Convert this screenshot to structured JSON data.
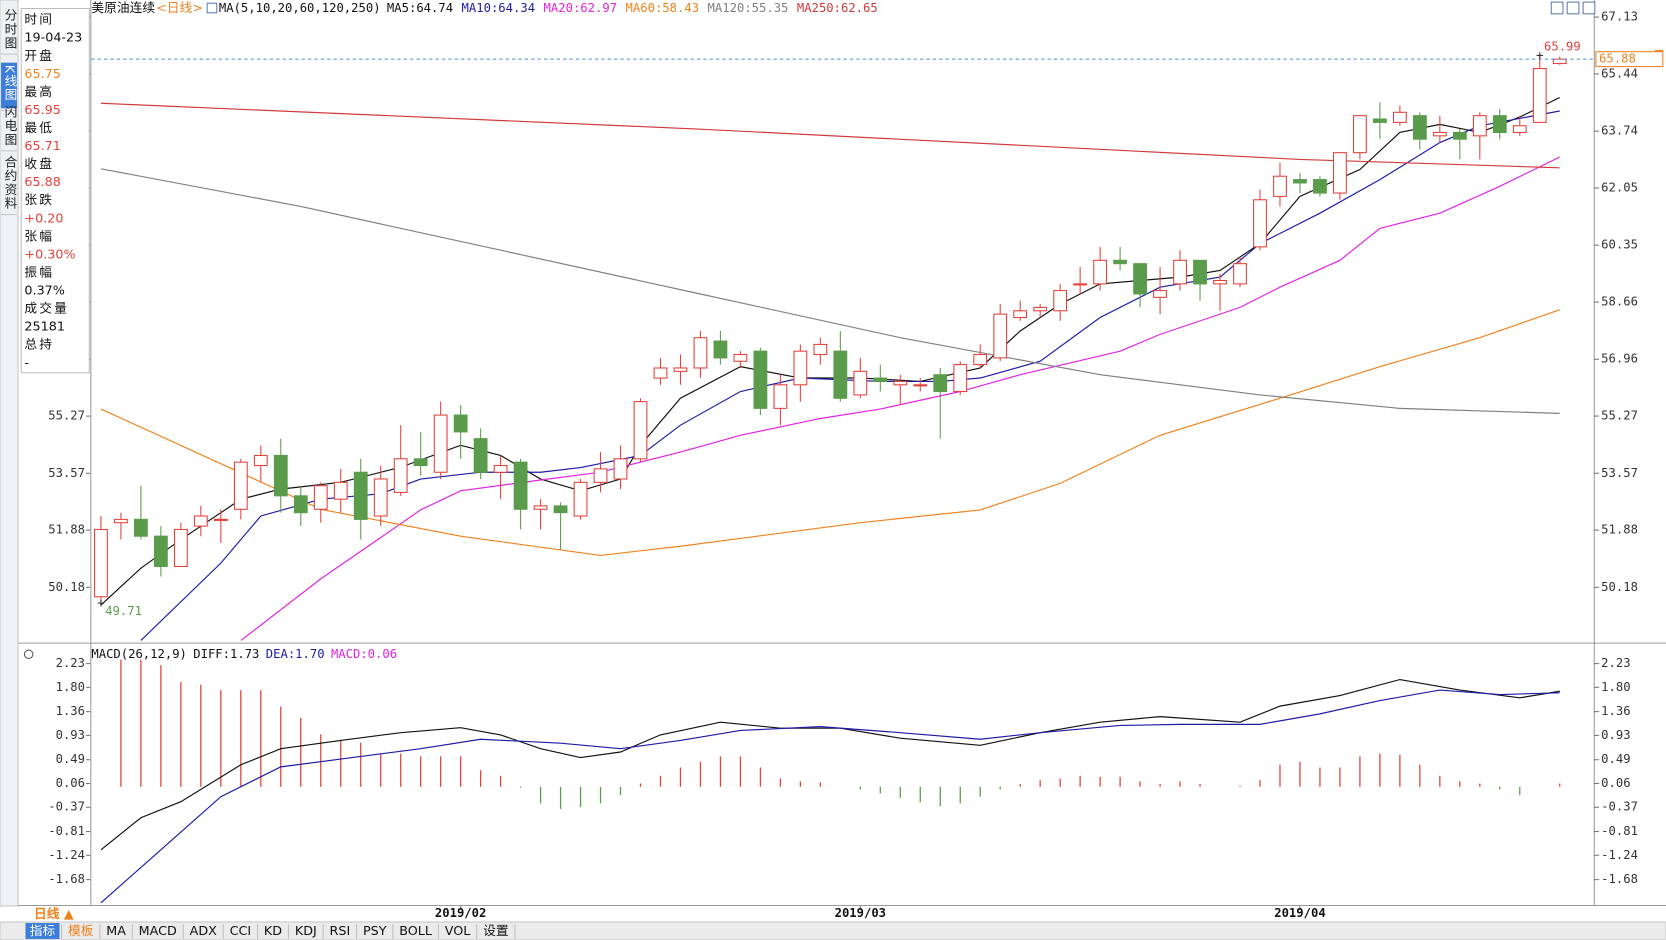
{
  "sidebar": [
    "分时图",
    "K线图",
    "闪电图",
    "合约资料"
  ],
  "info_panel": [
    {
      "label": "时间",
      "value": "19-04-23"
    },
    {
      "label": "开盘",
      "value": "65.75"
    },
    {
      "label": "最高",
      "value": "65.95"
    },
    {
      "label": "最低",
      "value": "65.71"
    },
    {
      "label": "收盘",
      "value": "65.88"
    },
    {
      "label": "张跌",
      "value": "+0.20"
    },
    {
      "label": "张幅",
      "value": "+0.30%"
    },
    {
      "label": "振幅",
      "value": "0.37%"
    },
    {
      "label": "成交量",
      "value": "25181"
    },
    {
      "label": "总持",
      "value": "-"
    }
  ],
  "period_button": "日线 ▲",
  "toolbar": [
    "指标",
    "模板",
    "MA",
    "MACD",
    "ADX",
    "CCI",
    "KD",
    "KDJ",
    "RSI",
    "PSY",
    "BOLL",
    "VOL",
    "设置"
  ],
  "chart_data": [
    {
      "type": "candlestick",
      "title": "美原油连续",
      "period": "<日线>",
      "indicator": "MA(5,10,20,60,120,250)",
      "up_color": "#e3413a",
      "down_color": "#5b9c4c",
      "open": [
        49.9,
        52.1,
        52.2,
        51.7,
        50.8,
        52.0,
        52.2,
        52.5,
        53.8,
        54.1,
        52.9,
        52.5,
        52.8,
        53.6,
        52.3,
        53.0,
        54.0,
        53.6,
        55.3,
        54.6,
        53.6,
        53.9,
        52.5,
        52.6,
        52.3,
        53.3,
        53.4,
        54.0,
        56.4,
        56.6,
        56.7,
        57.5,
        56.9,
        57.2,
        55.5,
        56.2,
        57.1,
        57.2,
        55.9,
        56.4,
        56.2,
        56.2,
        56.5,
        56.0,
        56.8,
        57.0,
        58.2,
        58.4,
        58.4,
        59.2,
        59.2,
        59.9,
        59.8,
        58.8,
        59.2,
        59.9,
        59.2,
        59.2,
        60.3,
        61.8,
        62.3,
        62.3,
        61.9,
        63.1,
        64.1,
        64.0,
        64.2,
        63.6,
        63.7,
        63.6,
        64.2,
        63.7,
        64.0,
        65.75
      ],
      "high": [
        52.3,
        52.4,
        53.2,
        52.0,
        52.1,
        52.6,
        52.5,
        54.0,
        54.4,
        54.6,
        53.2,
        53.3,
        53.7,
        54.0,
        53.8,
        55.0,
        54.8,
        55.7,
        55.6,
        54.9,
        54.1,
        54.0,
        52.8,
        52.7,
        53.4,
        54.2,
        54.4,
        55.8,
        57.0,
        57.1,
        57.8,
        57.8,
        57.2,
        57.3,
        56.5,
        57.4,
        57.6,
        57.8,
        57.0,
        56.8,
        56.5,
        56.4,
        56.7,
        56.9,
        57.4,
        58.6,
        58.7,
        58.6,
        59.2,
        59.7,
        60.3,
        60.3,
        59.8,
        59.7,
        60.2,
        59.9,
        59.5,
        60.0,
        62.0,
        62.8,
        62.5,
        62.4,
        63.1,
        64.2,
        64.6,
        64.5,
        64.3,
        64.2,
        63.8,
        64.3,
        64.4,
        64.2,
        65.99,
        65.95
      ],
      "low": [
        49.71,
        51.6,
        51.6,
        50.5,
        50.8,
        51.7,
        51.5,
        52.2,
        53.3,
        52.4,
        52.0,
        52.1,
        52.4,
        51.6,
        52.0,
        52.9,
        53.5,
        53.4,
        54.0,
        53.4,
        52.8,
        51.9,
        51.9,
        51.3,
        52.2,
        53.0,
        53.1,
        53.9,
        56.2,
        56.2,
        56.4,
        56.8,
        56.7,
        55.3,
        55.0,
        55.7,
        56.8,
        55.7,
        55.8,
        56.0,
        55.6,
        56.0,
        54.6,
        55.9,
        56.7,
        56.9,
        58.1,
        58.2,
        58.1,
        58.9,
        59.0,
        59.6,
        58.5,
        58.3,
        59.0,
        58.7,
        58.4,
        59.1,
        60.2,
        61.5,
        61.9,
        61.8,
        61.7,
        62.9,
        63.5,
        63.9,
        63.2,
        63.4,
        62.9,
        62.9,
        63.5,
        63.6,
        64.0,
        65.71
      ],
      "close": [
        51.9,
        52.2,
        51.7,
        50.8,
        51.9,
        52.3,
        52.2,
        53.9,
        54.1,
        52.9,
        52.4,
        53.2,
        53.3,
        52.2,
        53.4,
        54.0,
        53.8,
        55.3,
        54.8,
        53.6,
        53.8,
        52.5,
        52.6,
        52.4,
        53.3,
        53.7,
        54.0,
        55.7,
        56.7,
        56.7,
        57.6,
        57.0,
        57.1,
        55.5,
        56.2,
        57.2,
        57.4,
        55.8,
        56.6,
        56.3,
        56.3,
        56.2,
        56.0,
        56.8,
        57.1,
        58.3,
        58.4,
        58.5,
        59.0,
        59.2,
        59.9,
        59.8,
        58.9,
        59.0,
        59.9,
        59.2,
        59.3,
        59.8,
        61.7,
        62.4,
        62.2,
        61.9,
        63.1,
        64.2,
        64.0,
        64.3,
        63.5,
        63.7,
        63.5,
        64.2,
        63.7,
        63.9,
        65.6,
        65.88
      ],
      "extreme_labels": [
        65.99,
        49.71
      ],
      "last_price": 65.88,
      "ylim": [
        48.6,
        67.48
      ],
      "yticks": [
        67.13,
        65.44,
        63.74,
        62.05,
        60.35,
        58.66,
        56.96,
        55.27,
        53.57,
        51.88,
        50.18
      ],
      "series": [
        {
          "name": "MA5:64.74",
          "color": "#111111",
          "x": [
            0,
            2,
            4,
            7,
            9,
            12,
            15,
            18,
            20,
            22,
            24,
            26,
            27,
            29,
            32,
            35,
            38,
            41,
            44,
            46,
            48,
            50,
            52,
            54,
            56,
            58,
            60,
            63,
            65,
            67,
            69,
            71,
            73
          ],
          "values": [
            49.65,
            50.75,
            51.6,
            52.8,
            53.1,
            53.3,
            53.75,
            54.4,
            54.1,
            53.4,
            53.05,
            53.4,
            54.4,
            55.8,
            56.74,
            56.4,
            56.4,
            56.3,
            56.7,
            57.8,
            58.6,
            59.2,
            59.3,
            59.4,
            59.6,
            60.4,
            61.8,
            62.6,
            63.7,
            63.94,
            63.7,
            64.16,
            64.74
          ]
        },
        {
          "name": "MA10:64.34",
          "color": "#1c1ca8",
          "x": [
            2,
            6,
            8,
            11,
            14,
            16,
            19,
            22,
            24,
            27,
            29,
            32,
            35,
            39,
            42,
            44,
            47,
            50,
            53,
            56,
            58,
            61,
            64,
            67,
            69,
            73
          ],
          "values": [
            48.6,
            50.9,
            52.3,
            52.8,
            52.96,
            53.4,
            53.6,
            53.6,
            53.74,
            54.1,
            55.0,
            56.0,
            56.4,
            56.3,
            56.3,
            56.4,
            56.9,
            58.2,
            59.1,
            59.4,
            60.4,
            61.3,
            62.3,
            63.4,
            63.9,
            64.34
          ]
        },
        {
          "name": "MA20:62.97",
          "color": "#e024e0",
          "x": [
            7,
            11,
            16,
            18,
            22,
            25,
            29,
            32,
            36,
            39,
            43,
            46,
            51,
            53,
            57,
            59,
            62,
            64,
            67,
            70,
            73
          ],
          "values": [
            48.6,
            50.43,
            52.48,
            53.05,
            53.37,
            53.6,
            54.2,
            54.7,
            55.2,
            55.48,
            56.0,
            56.5,
            57.2,
            57.7,
            58.5,
            59.1,
            59.9,
            60.85,
            61.3,
            62.1,
            62.97
          ]
        },
        {
          "name": "MA60:58.43",
          "color": "#f0821e",
          "x": [
            0,
            11,
            18,
            25,
            29,
            38,
            44,
            48,
            53,
            59,
            64,
            69,
            73
          ],
          "values": [
            55.48,
            52.5,
            51.7,
            51.13,
            51.4,
            52.1,
            52.48,
            53.27,
            54.7,
            55.8,
            56.74,
            57.6,
            58.43
          ]
        },
        {
          "name": "MA120:55.35",
          "color": "#808080",
          "x": [
            0,
            10,
            20,
            30,
            40,
            50,
            58,
            65,
            73
          ],
          "values": [
            62.62,
            61.5,
            60.2,
            58.9,
            57.6,
            56.5,
            55.9,
            55.5,
            55.35
          ]
        },
        {
          "name": "MA250:62.65",
          "color": "#d23a3a",
          "x": [
            0,
            30,
            60,
            73
          ],
          "values": [
            64.57,
            63.8,
            62.9,
            62.65
          ]
        }
      ]
    },
    {
      "type": "macd",
      "title": "MACD(26,12,9)",
      "categories": [
        null,
        null,
        null,
        null,
        null,
        null,
        null,
        null,
        null,
        null,
        null,
        null,
        null,
        null,
        null,
        null,
        null,
        null,
        "2019/02",
        null,
        null,
        null,
        null,
        null,
        null,
        null,
        null,
        null,
        null,
        null,
        null,
        null,
        null,
        null,
        null,
        null,
        null,
        null,
        "2019/03",
        null,
        null,
        null,
        null,
        null,
        null,
        null,
        null,
        null,
        null,
        null,
        null,
        null,
        null,
        null,
        null,
        null,
        null,
        null,
        null,
        null,
        "2019/04",
        null,
        null,
        null,
        null,
        null,
        null,
        null,
        null,
        null,
        null,
        null,
        null,
        null,
        null
      ],
      "ylim": [
        -2.1,
        2.36
      ],
      "yticks": [
        2.23,
        {
          "value": 1.8,
          "label": "1.80"
        },
        1.36,
        0.93,
        0.49,
        0.06,
        -0.37,
        -0.81,
        -1.24,
        -1.68
      ],
      "series": [
        {
          "name": "DIFF:1.73",
          "color": "#111111",
          "x": [
            0,
            2,
            4,
            7,
            9,
            12,
            15,
            18,
            20,
            22,
            24,
            26,
            28,
            31,
            34,
            37,
            40,
            44,
            47,
            50,
            53,
            57,
            59,
            62,
            65,
            68,
            71,
            73
          ],
          "values": [
            -1.14,
            -0.56,
            -0.27,
            0.4,
            0.69,
            0.84,
            0.98,
            1.07,
            0.94,
            0.69,
            0.53,
            0.63,
            0.94,
            1.17,
            1.06,
            1.06,
            0.88,
            0.75,
            0.98,
            1.17,
            1.27,
            1.17,
            1.46,
            1.65,
            1.94,
            1.75,
            1.61,
            1.73
          ]
        },
        {
          "name": "DEA:1.70",
          "color": "#1c1ca8",
          "x": [
            0,
            3,
            6,
            9,
            13,
            16,
            19,
            23,
            26,
            29,
            32,
            36,
            40,
            44,
            47,
            51,
            54,
            58,
            61,
            64,
            67,
            70,
            73
          ],
          "values": [
            -2.1,
            -1.14,
            -0.18,
            0.36,
            0.55,
            0.69,
            0.86,
            0.79,
            0.69,
            0.84,
            1.02,
            1.09,
            0.98,
            0.86,
            0.98,
            1.11,
            1.13,
            1.13,
            1.32,
            1.56,
            1.75,
            1.67,
            1.7
          ]
        }
      ],
      "histogram": {
        "name": "MACD:0.06",
        "color": "#e024e0",
        "up_color": "#e3413a",
        "down_color": "#5b9c4c",
        "values": [
          null,
          2.3,
          2.3,
          2.2,
          1.9,
          1.85,
          1.75,
          1.75,
          1.75,
          1.45,
          1.25,
          0.95,
          0.85,
          0.8,
          0.6,
          0.6,
          0.55,
          0.55,
          0.55,
          0.3,
          0.2,
          -0.02,
          -0.3,
          -0.4,
          -0.37,
          -0.3,
          -0.15,
          0.06,
          0.2,
          0.35,
          0.45,
          0.55,
          0.55,
          0.35,
          0.15,
          0.1,
          0.08,
          0.0,
          -0.05,
          -0.12,
          -0.2,
          -0.28,
          -0.35,
          -0.3,
          -0.18,
          -0.05,
          0.05,
          0.12,
          0.15,
          0.2,
          0.18,
          0.18,
          0.1,
          0.05,
          0.1,
          0.05,
          0.0,
          0.02,
          0.12,
          0.4,
          0.45,
          0.35,
          0.35,
          0.55,
          0.6,
          0.58,
          0.4,
          0.2,
          0.1,
          0.06,
          -0.05,
          -0.15,
          0.0,
          0.06
        ]
      }
    }
  ]
}
